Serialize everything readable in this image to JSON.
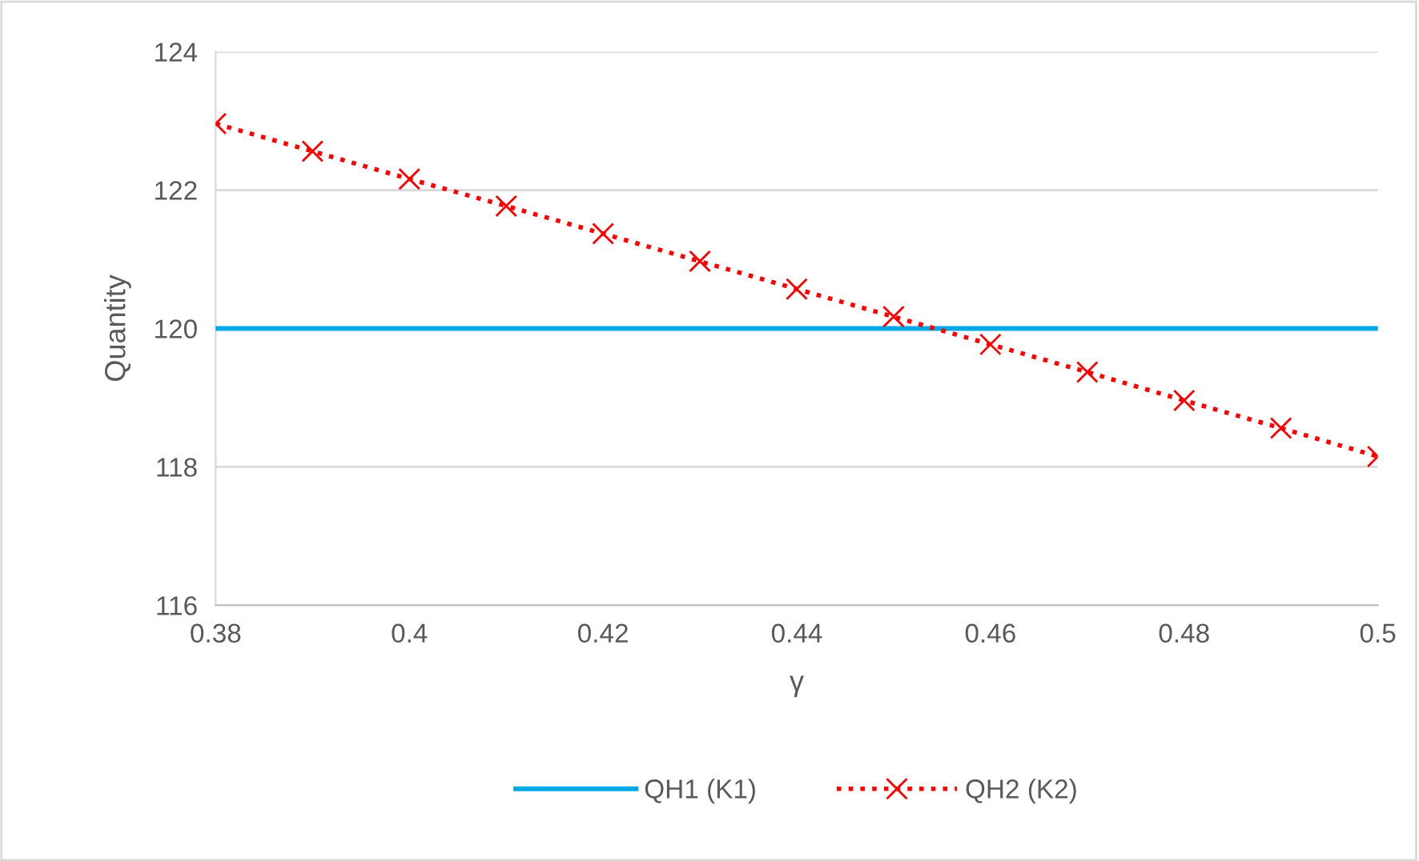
{
  "chart_data": {
    "type": "line",
    "xlabel": "γ",
    "ylabel": "Quantity",
    "x": [
      0.38,
      0.39,
      0.4,
      0.41,
      0.42,
      0.43,
      0.44,
      0.45,
      0.46,
      0.47,
      0.48,
      0.49,
      0.5
    ],
    "series": [
      {
        "name": "QH1 (K1)",
        "color": "#00a9e6",
        "line_style": "solid",
        "marker": "none",
        "values": [
          120,
          120,
          120,
          120,
          120,
          120,
          120,
          120,
          120,
          120,
          120,
          120,
          120
        ]
      },
      {
        "name": "QH2 (K2)",
        "color": "#ff0000",
        "line_style": "dotted",
        "marker": "cross",
        "values": [
          122.96,
          122.56,
          122.16,
          121.77,
          121.37,
          120.97,
          120.57,
          120.17,
          119.77,
          119.37,
          118.96,
          118.56,
          118.15
        ]
      }
    ],
    "xlim": [
      0.38,
      0.5
    ],
    "xticks": [
      0.38,
      0.4,
      0.42,
      0.44,
      0.46,
      0.48,
      0.5
    ],
    "ylim": [
      116,
      124
    ],
    "yticks": [
      116,
      118,
      120,
      122,
      124
    ],
    "grid": "y",
    "legend": "bottom"
  }
}
